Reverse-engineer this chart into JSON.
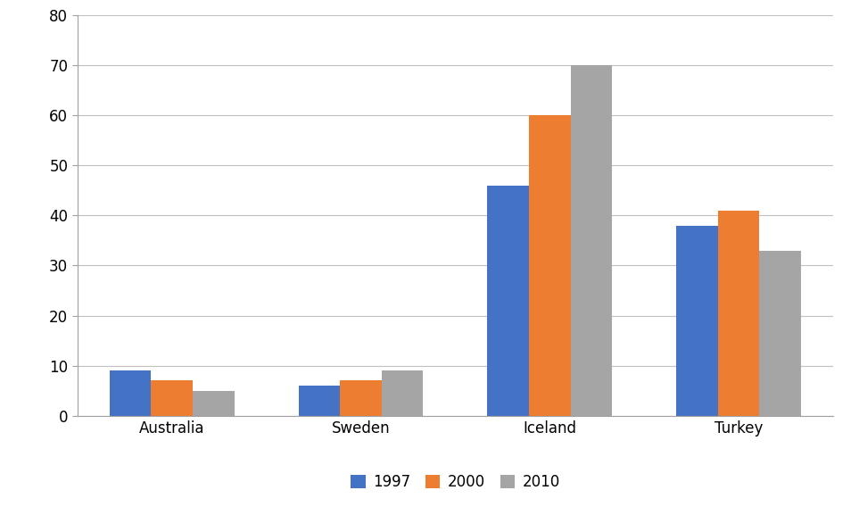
{
  "categories": [
    "Australia",
    "Sweden",
    "Iceland",
    "Turkey"
  ],
  "series": {
    "1997": [
      9,
      6,
      46,
      38
    ],
    "2000": [
      7,
      7,
      60,
      41
    ],
    "2010": [
      5,
      9,
      70,
      33
    ]
  },
  "bar_colors": {
    "1997": "#4472C4",
    "2000": "#ED7D31",
    "2010": "#A5A5A5"
  },
  "ylim": [
    0,
    80
  ],
  "yticks": [
    0,
    10,
    20,
    30,
    40,
    50,
    60,
    70,
    80
  ],
  "legend_labels": [
    "1997",
    "2000",
    "2010"
  ],
  "background_color": "#FFFFFF",
  "grid_color": "#C0C0C0",
  "bar_width": 0.22,
  "border_color": "#A0A0A0"
}
